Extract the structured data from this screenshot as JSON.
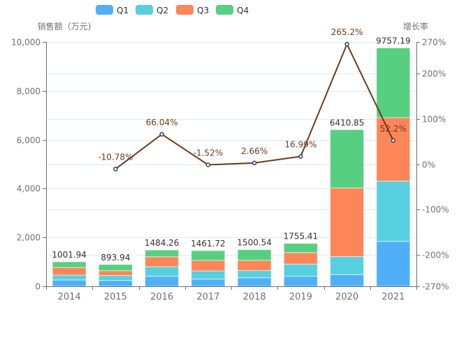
{
  "chart_data": {
    "type": "bar",
    "categories": [
      "2014",
      "2015",
      "2016",
      "2017",
      "2018",
      "2019",
      "2020",
      "2021"
    ],
    "series": [
      {
        "name": "Q1",
        "color": "#4fb0f8",
        "values": [
          260,
          240,
          410,
          295,
          350,
          410,
          480,
          1840
        ]
      },
      {
        "name": "Q2",
        "color": "#58cfde",
        "values": [
          200,
          200,
          390,
          335,
          295,
          500,
          735,
          2465
        ]
      },
      {
        "name": "Q3",
        "color": "#fd8659",
        "values": [
          310,
          200,
          410,
          430,
          420,
          470,
          2810,
          2600
        ]
      },
      {
        "name": "Q4",
        "color": "#57cf80",
        "values": [
          231.94,
          253.94,
          274.26,
          401.72,
          435.54,
          375.41,
          2385.85,
          2852.19
        ]
      }
    ],
    "totals": [
      "1001.94",
      "893.94",
      "1484.26",
      "1461.72",
      "1500.54",
      "1755.41",
      "6410.85",
      "9757.19"
    ],
    "line_series": {
      "name": "增长率",
      "color": "#6b3b1b",
      "values": [
        null,
        -10.78,
        66.04,
        -1.52,
        2.66,
        16.99,
        265.2,
        52.2
      ],
      "labels": [
        null,
        "-10.78%",
        "66.04%",
        "-1.52%",
        "2.66%",
        "16.99%",
        "265.2%",
        "52.2%"
      ]
    },
    "y_left": {
      "name": "销售额（万元)",
      "ylim": [
        0,
        10000
      ],
      "ticks": [
        "0",
        "2,000",
        "4,000",
        "6,000",
        "8,000",
        "10,000"
      ],
      "tick_values": [
        0,
        2000,
        4000,
        6000,
        8000,
        10000
      ]
    },
    "y_right": {
      "name": "增长率",
      "ylim": [
        -270,
        270
      ],
      "ticks": [
        "-270%",
        "-200%",
        "-100%",
        "0%",
        "100%",
        "200%",
        "270%"
      ],
      "tick_values": [
        -270,
        -200,
        -100,
        0,
        100,
        200,
        270
      ]
    },
    "legend": {
      "position": "top-center",
      "items": [
        "Q1",
        "Q2",
        "Q3",
        "Q4"
      ]
    },
    "grid": true
  }
}
